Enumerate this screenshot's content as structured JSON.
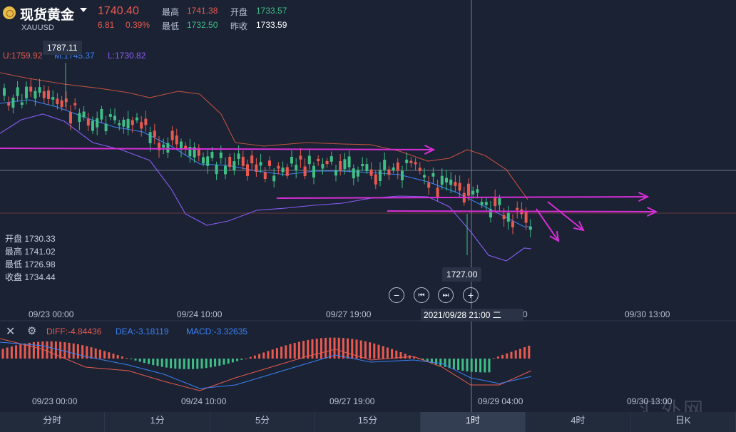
{
  "header": {
    "title": "现货黄金",
    "symbol": "XAUUSD",
    "price": "1740.40",
    "change": "6.81",
    "change_pct": "0.39%",
    "stats": [
      {
        "label": "最高",
        "value": "1741.38",
        "color": "red"
      },
      {
        "label": "开盘",
        "value": "1733.57",
        "color": "green"
      },
      {
        "label": "最低",
        "value": "1732.50",
        "color": "green"
      },
      {
        "label": "昨收",
        "value": "1733.59",
        "color": "white"
      }
    ]
  },
  "indicators": {
    "upper": "U:1759.92",
    "middle": "M:1745.37",
    "lower": "L:1730.82"
  },
  "tooltips": {
    "high_marker": "1787.11",
    "low_marker": "1727.00"
  },
  "ohlc_panel": {
    "open": "开盘 1730.33",
    "high": "最高 1741.02",
    "low": "最低 1726.98",
    "close": "收盘 1734.44"
  },
  "crosshair_label": "2021/09/28 21:00 二",
  "main_xaxis": [
    "09/23 00:00",
    "09/24 10:00",
    "09/27 19:00",
    ":00",
    "09/30 13:00"
  ],
  "macd": {
    "diff": "DIFF:-4.84436",
    "dea": "DEA:-3.18119",
    "macd": "MACD:-3.32635"
  },
  "macd_xaxis": [
    "09/23 00:00",
    "09/24 10:00",
    "09/27 19:00",
    "09/29 04:00",
    "09/30 13:00"
  ],
  "controls": [
    "−",
    "⏮",
    "⏭",
    "+"
  ],
  "tabs": [
    "分时",
    "1分",
    "5分",
    "15分",
    "1时",
    "4时",
    "日K"
  ],
  "active_tab": "1时",
  "watermark": "汇外网",
  "colors": {
    "background": "#1a2233",
    "up": "#e85a4f",
    "down": "#3fbf86",
    "middle_band": "#3b82f6",
    "lower_band": "#8b5cf6",
    "annotation": "#d62fd6"
  },
  "chart_data": {
    "type": "candlestick",
    "bollinger": {
      "upper": 1759.92,
      "middle": 1745.37,
      "lower": 1730.82
    },
    "marked_high": 1787.11,
    "marked_low": 1727.0,
    "macd": {
      "diff": -4.84436,
      "dea": -3.18119,
      "macd": -3.32635
    }
  }
}
